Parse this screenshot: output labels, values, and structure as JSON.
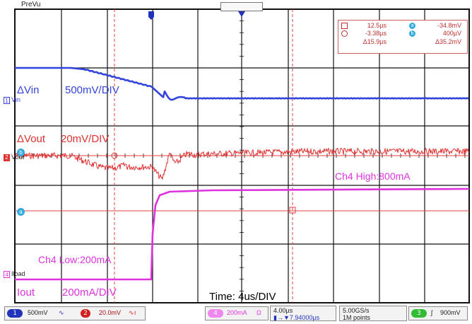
{
  "preview_label": "PreVu",
  "channels": {
    "ch1": {
      "marker": "1",
      "name": "Vin",
      "annotation": "ΔVin",
      "scale_note": "500mV/DIV",
      "color": "#3344dd"
    },
    "ch2": {
      "marker": "2",
      "name": "Vout",
      "annotation": "ΔVout",
      "scale_note": "20mV/DIV",
      "color": "#e03030"
    },
    "ch4": {
      "marker": "4",
      "name": "Iload",
      "annotation": "Iout",
      "scale_note": "200mA/DIV",
      "color": "#dd33dd"
    }
  },
  "annotations": {
    "high": "Ch4 High:800mA",
    "low": "Ch4 Low:200mA",
    "time": "Time: 4us/DIV"
  },
  "cursor_markers": {
    "a": "a",
    "b": "b"
  },
  "cursor_readout": {
    "t1": "12.5µs",
    "t2": "-3.38µs",
    "dt": "Δ15.9µs",
    "v1": "-34.8mV",
    "v2": "400µV",
    "dv": "Δ35.2mV",
    "marker_a": "a",
    "marker_b": "b"
  },
  "status_bar": {
    "ch1_num": "1",
    "ch1_scale": "500mV",
    "ch1_coupling": "∿",
    "ch2_num": "2",
    "ch2_scale": "20.0mV",
    "ch2_coupling": "∿≀",
    "ch4_num": "4",
    "ch4_scale": "200mA",
    "ch4_coupling": "Ω",
    "timebase": "4.00µs",
    "trigger_pos": "▮→▼7.94000µs",
    "sample_rate": "5.00GS/s",
    "record_length": "1M points",
    "trig_source": "3",
    "trig_slope": "ʃ",
    "trig_level": "900mV"
  }
}
